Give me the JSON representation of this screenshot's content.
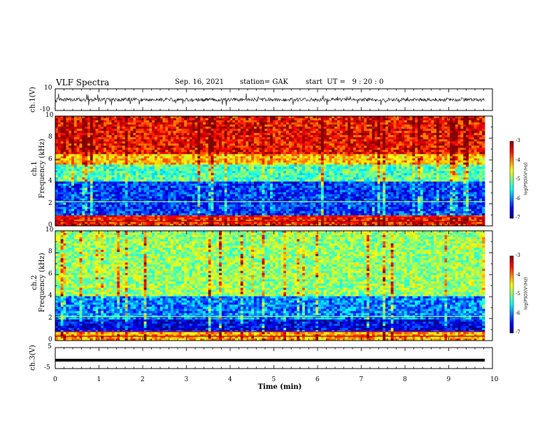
{
  "header": {
    "title": "VLF Spectra",
    "date": "Sep. 16, 2021",
    "station": "station= GAK",
    "start": "start  UT =   9 : 20 : 0"
  },
  "chart_data": [
    {
      "type": "line",
      "panel": "waveform-ch1",
      "ylabel": "ch.1(V)",
      "ylim": [
        -10,
        10
      ],
      "yticks": [
        "10",
        "-10"
      ],
      "xlim": [
        0,
        10
      ],
      "series": [
        {
          "values": "noisy waveform centred near 0 V, amplitude about ±2 V with spikes"
        }
      ]
    },
    {
      "type": "heatmap",
      "panel": "spectrogram-ch1",
      "ylabel": "ch.1\nFrequency (kHz)",
      "ylim": [
        0,
        10
      ],
      "yticks": [
        "0",
        "2",
        "4",
        "6",
        "8",
        "10"
      ],
      "xlim": [
        0,
        10
      ],
      "colorbar": {
        "label": "log(PSD)(V²/Hz)",
        "range": [
          -7,
          -3
        ],
        "ticks": [
          "-3",
          "-4",
          "-5",
          "-6",
          "-7"
        ]
      },
      "description_levels": {
        "0-1 kHz": -3.5,
        "1-4 kHz": -6.3,
        "4-6 kHz": -5.3,
        "6-10 kHz": -3.6
      }
    },
    {
      "type": "heatmap",
      "panel": "spectrogram-ch2",
      "ylabel": "ch.2\nFrequency (kHz)",
      "ylim": [
        0,
        10
      ],
      "yticks": [
        "0",
        "2",
        "4",
        "6",
        "8",
        "10"
      ],
      "xlim": [
        0,
        10
      ],
      "colorbar": {
        "label": "log(PSD)(V²/Hz)",
        "range": [
          -7,
          -3
        ],
        "ticks": [
          "-3",
          "-4",
          "-5",
          "-6",
          "-7"
        ]
      },
      "description_levels": {
        "0-2 kHz": -6.5,
        "2-4 kHz": -6.0,
        "4-10 kHz": -4.8
      }
    },
    {
      "type": "line",
      "panel": "waveform-ch3",
      "ylabel": "ch.3(V)",
      "ylim": [
        -5,
        5
      ],
      "yticks": [
        "5",
        "0",
        "-5"
      ],
      "xlim": [
        0,
        10
      ],
      "series": [
        {
          "values": "flat line at about -1 V"
        }
      ]
    }
  ],
  "xaxis": {
    "label": "Time  (min)",
    "ticks": [
      "0",
      "1",
      "2",
      "3",
      "4",
      "5",
      "6",
      "7",
      "8",
      "9",
      "10"
    ]
  },
  "colors": {
    "low": "#00008b",
    "mid": "#00ff00",
    "high": "#ff0000"
  }
}
